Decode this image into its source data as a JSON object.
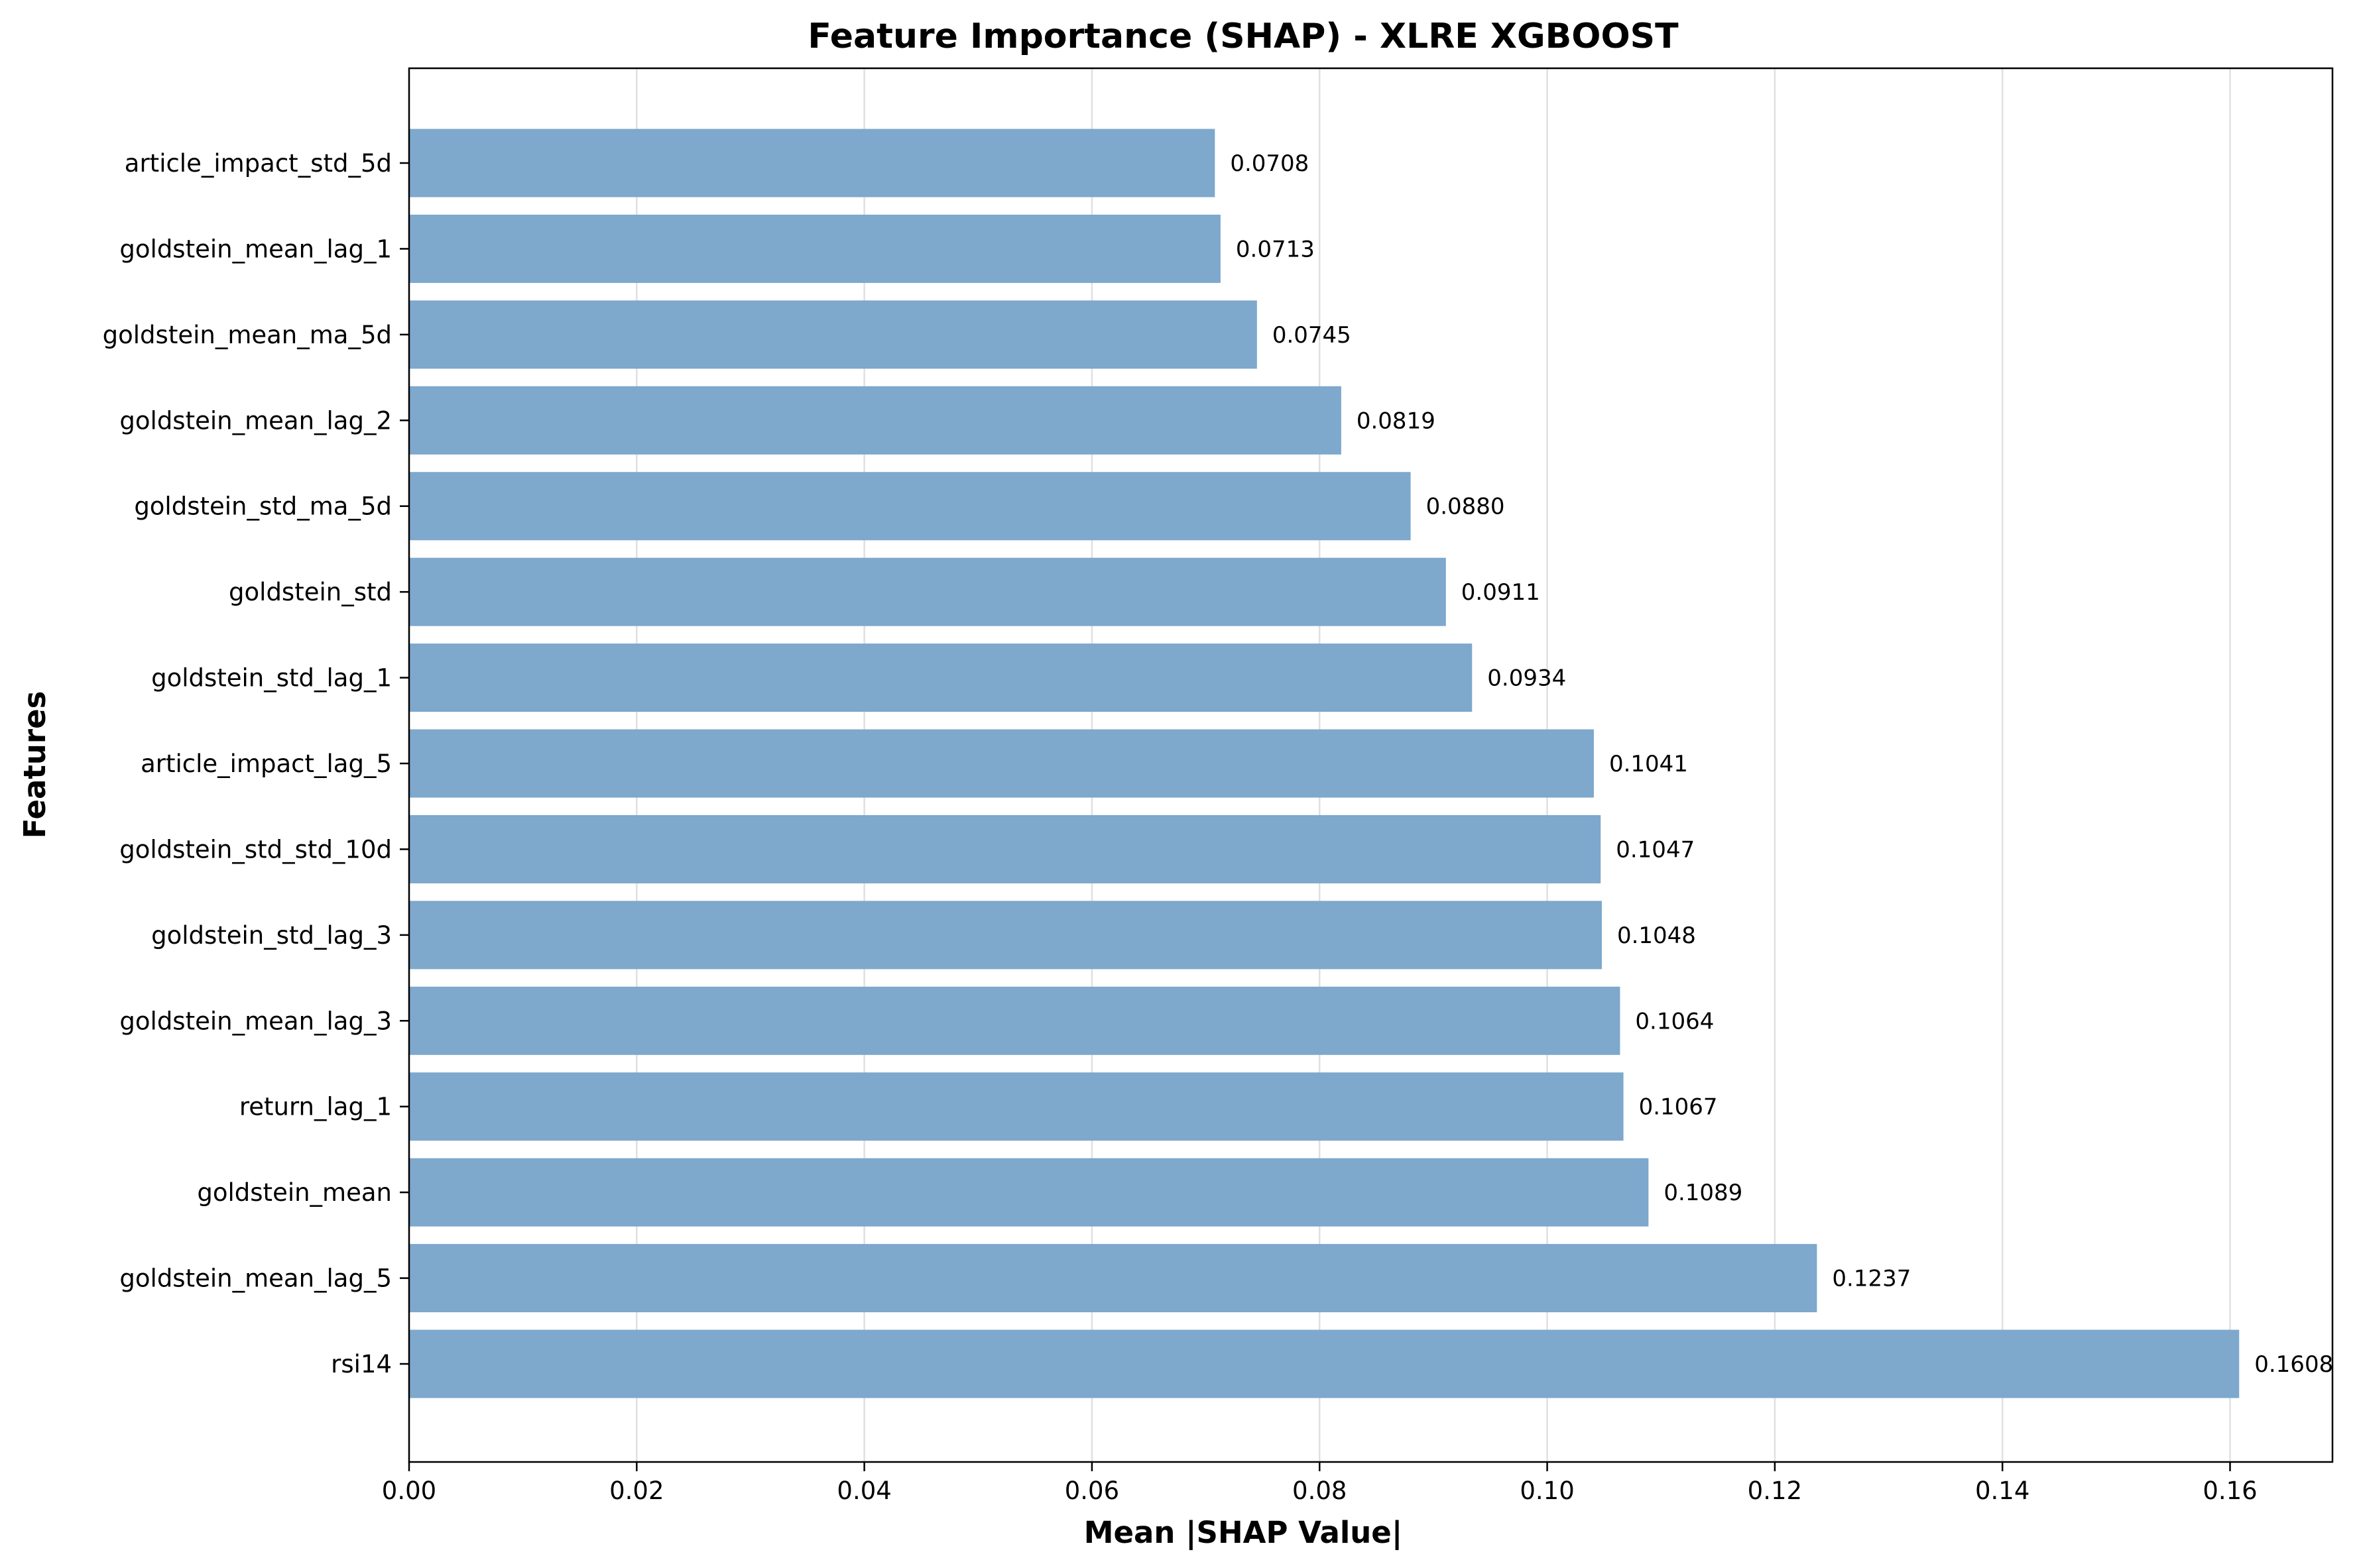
{
  "chart_data": {
    "type": "bar",
    "orientation": "horizontal",
    "title": "Feature Importance (SHAP) - XLRE XGBOOST",
    "xlabel": "Mean |SHAP Value|",
    "ylabel": "Features",
    "xlim": [
      0.0,
      0.169
    ],
    "x_ticks": [
      0.0,
      0.02,
      0.04,
      0.06,
      0.08,
      0.1,
      0.12,
      0.14,
      0.16
    ],
    "x_tick_labels": [
      "0.00",
      "0.02",
      "0.04",
      "0.06",
      "0.08",
      "0.10",
      "0.12",
      "0.14",
      "0.16"
    ],
    "grid": "vertical",
    "bar_color": "#7ea8cc",
    "categories": [
      "article_impact_std_5d",
      "goldstein_mean_lag_1",
      "goldstein_mean_ma_5d",
      "goldstein_mean_lag_2",
      "goldstein_std_ma_5d",
      "goldstein_std",
      "goldstein_std_lag_1",
      "article_impact_lag_5",
      "goldstein_std_std_10d",
      "goldstein_std_lag_3",
      "goldstein_mean_lag_3",
      "return_lag_1",
      "goldstein_mean",
      "goldstein_mean_lag_5",
      "rsi14"
    ],
    "values": [
      0.0708,
      0.0713,
      0.0745,
      0.0819,
      0.088,
      0.0911,
      0.0934,
      0.1041,
      0.1047,
      0.1048,
      0.1064,
      0.1067,
      0.1089,
      0.1237,
      0.1608
    ],
    "value_labels": [
      "0.0708",
      "0.0713",
      "0.0745",
      "0.0819",
      "0.0880",
      "0.0911",
      "0.0934",
      "0.1041",
      "0.1047",
      "0.1048",
      "0.1064",
      "0.1067",
      "0.1089",
      "0.1237",
      "0.1608"
    ]
  }
}
